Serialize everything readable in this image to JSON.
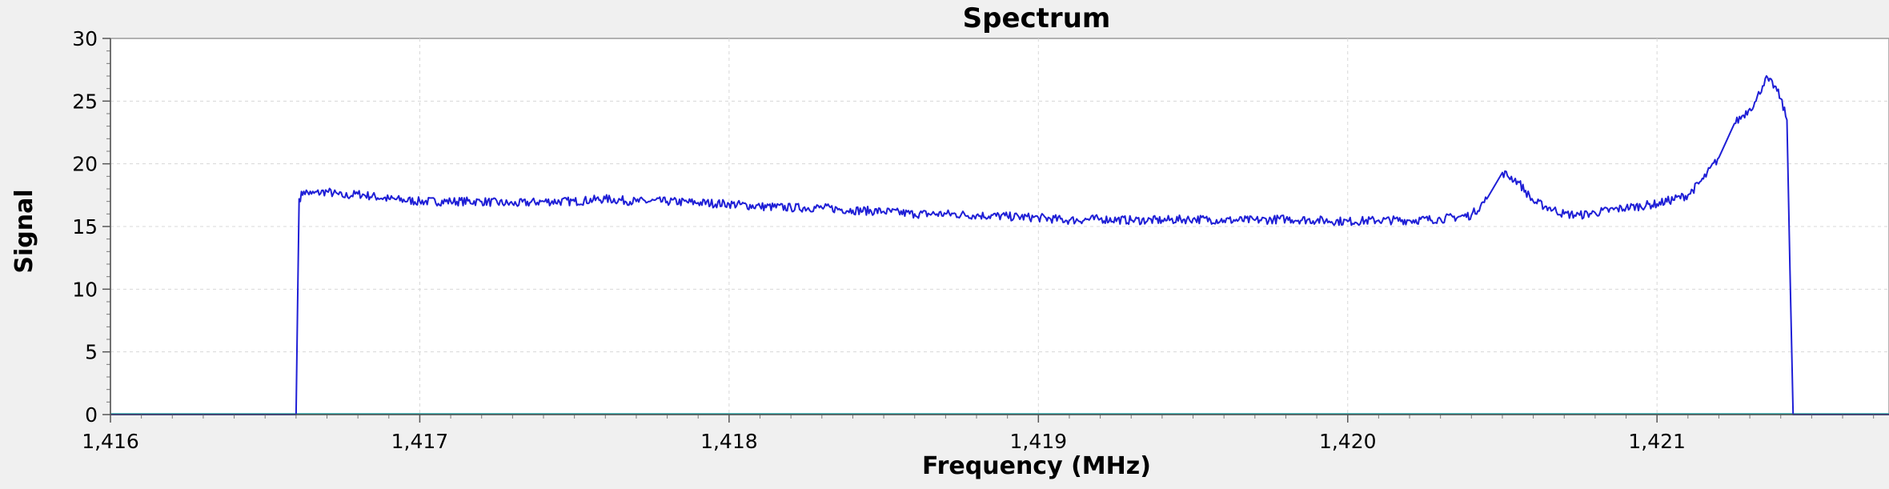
{
  "chart_data": {
    "type": "line",
    "title": "Spectrum",
    "xlabel": "Frequency (MHz)",
    "ylabel": "Signal",
    "xlim": [
      1416.0,
      1421.75
    ],
    "ylim": [
      0,
      30
    ],
    "x_ticks": [
      1416,
      1417,
      1418,
      1419,
      1420,
      1421
    ],
    "x_tick_labels": [
      "1,416",
      "1,417",
      "1,418",
      "1,419",
      "1,420",
      "1,421"
    ],
    "y_ticks": [
      0,
      5,
      10,
      15,
      20,
      25,
      30
    ],
    "y_tick_labels": [
      "0",
      "5",
      "10",
      "15",
      "20",
      "25",
      "30"
    ],
    "grid": true,
    "legend": "none",
    "colors": {
      "series": "#1f1fd6",
      "baseline": "#19a3a3",
      "grid": "#d8d8d8",
      "plot_bg": "#ffffff",
      "page_bg": "#f0f0f0"
    },
    "series": [
      {
        "x": [
          1416.0,
          1416.6,
          1416.605,
          1416.61,
          1416.625,
          1416.65,
          1416.7,
          1416.75,
          1416.8,
          1416.9,
          1417.0,
          1417.1,
          1417.2,
          1417.3,
          1417.4,
          1417.5,
          1417.6,
          1417.7,
          1417.8,
          1417.9,
          1418.0,
          1418.1,
          1418.2,
          1418.3,
          1418.4,
          1418.5,
          1418.6,
          1418.7,
          1418.8,
          1418.9,
          1419.0,
          1419.1,
          1419.2,
          1419.3,
          1419.4,
          1419.5,
          1419.6,
          1419.7,
          1419.8,
          1419.9,
          1420.0,
          1420.1,
          1420.2,
          1420.3,
          1420.4,
          1420.45,
          1420.5,
          1420.55,
          1420.6,
          1420.65,
          1420.7,
          1420.75,
          1420.8,
          1420.9,
          1421.0,
          1421.1,
          1421.15,
          1421.2,
          1421.25,
          1421.3,
          1421.32,
          1421.35,
          1421.38,
          1421.4,
          1421.42,
          1421.43,
          1421.44,
          1421.75
        ],
        "y": [
          0.0,
          0.0,
          8.8,
          17.2,
          17.8,
          17.6,
          17.8,
          17.4,
          17.6,
          17.2,
          17.0,
          17.0,
          17.0,
          16.8,
          17.0,
          17.0,
          17.2,
          17.0,
          17.0,
          16.9,
          16.8,
          16.6,
          16.5,
          16.5,
          16.3,
          16.2,
          16.0,
          16.0,
          15.9,
          15.8,
          15.7,
          15.5,
          15.6,
          15.5,
          15.5,
          15.6,
          15.5,
          15.5,
          15.6,
          15.5,
          15.4,
          15.5,
          15.5,
          15.6,
          15.9,
          17.2,
          19.3,
          18.6,
          17.0,
          16.5,
          16.0,
          15.9,
          16.1,
          16.5,
          16.8,
          17.5,
          18.8,
          20.5,
          23.2,
          24.4,
          25.0,
          26.8,
          26.2,
          25.2,
          23.5,
          11.5,
          0.0,
          0.0
        ]
      }
    ]
  }
}
